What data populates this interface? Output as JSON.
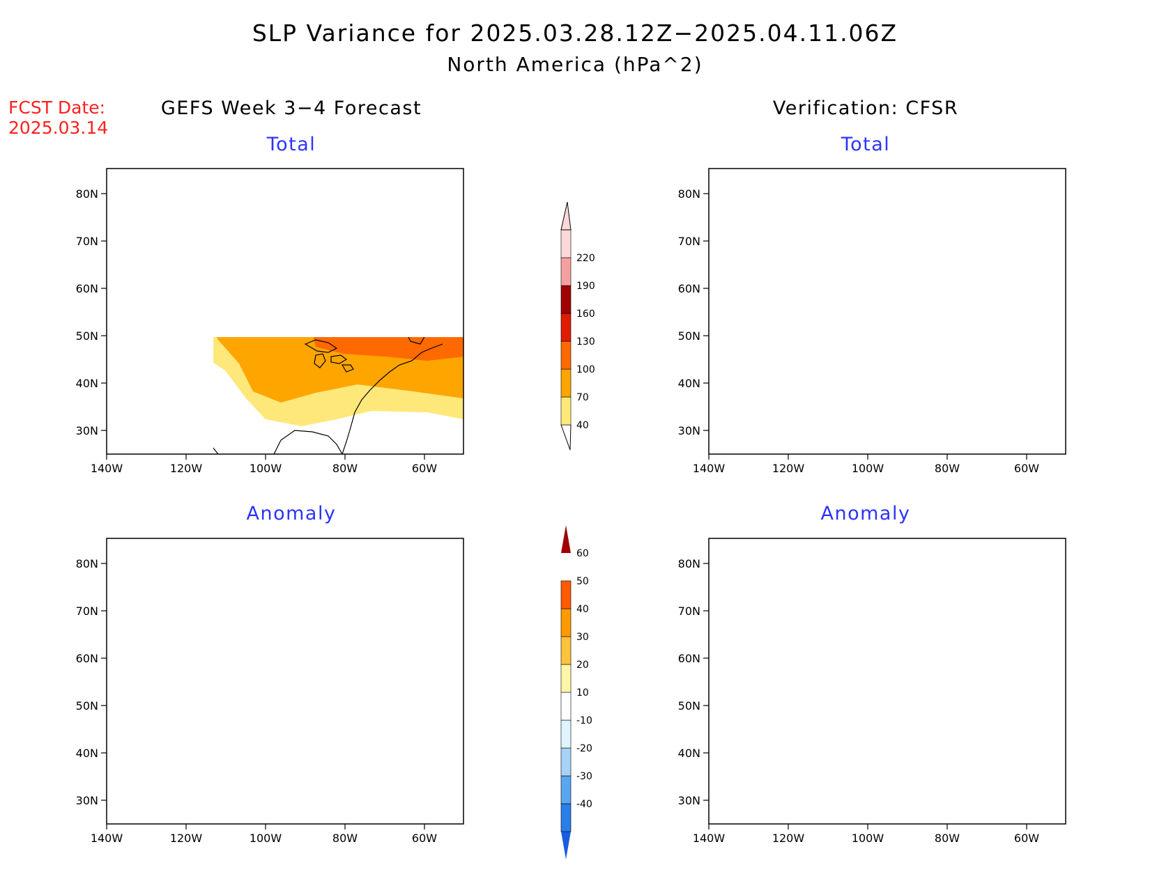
{
  "header": {
    "title": "SLP Variance for 2025.03.28.12Z−2025.04.11.06Z",
    "subtitle": "North America (hPa^2)",
    "fcst_label": "FCST Date:",
    "fcst_date": "2025.03.14"
  },
  "columns": {
    "left": "GEFS Week 3−4 Forecast",
    "right": "Verification: CFSR"
  },
  "panels": {
    "fcst_total": "Total",
    "fcst_anomaly": "Anomaly",
    "ver_total": "Total",
    "ver_anomaly": "Anomaly"
  },
  "axes": {
    "lat_labels": [
      "80N",
      "70N",
      "60N",
      "50N",
      "40N",
      "30N"
    ],
    "lon_labels": [
      "140W",
      "120W",
      "100W",
      "80W",
      "60W"
    ]
  },
  "legend_total": {
    "levels": [
      "40",
      "70",
      "100",
      "130",
      "160",
      "190",
      "220"
    ],
    "colors": [
      "#ffe87a",
      "#ffa500",
      "#ff6a00",
      "#e01b00",
      "#a00000",
      "#f4a0a0",
      "#fcd8d8"
    ]
  },
  "legend_anomaly": {
    "levels": [
      "-40",
      "-30",
      "-20",
      "-10",
      "10",
      "20",
      "30",
      "40",
      "50",
      "60"
    ],
    "colors": [
      "#1a5ee0",
      "#2b7de9",
      "#5aa6f0",
      "#a8d2f7",
      "#dff4fd",
      "#ffffff",
      "#fff7a8",
      "#ffc23d",
      "#ff9a00",
      "#ff5a00",
      "#dd1c00",
      "#a00000"
    ]
  }
}
